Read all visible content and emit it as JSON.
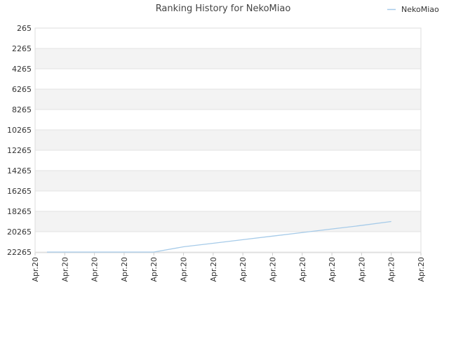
{
  "chart_data": {
    "type": "line",
    "title": "Ranking History for NekoMiao",
    "xlabel": "",
    "ylabel": "",
    "y_inverted": true,
    "ylim": [
      265,
      22265
    ],
    "y_ticks": [
      265,
      2265,
      4265,
      6265,
      8265,
      10265,
      12265,
      14265,
      16265,
      18265,
      20265,
      22265
    ],
    "x_ticks": [
      "Apr.20",
      "Apr.20",
      "Apr.20",
      "Apr.20",
      "Apr.20",
      "Apr.20",
      "Apr.20",
      "Apr.20",
      "Apr.20",
      "Apr.20",
      "Apr.20",
      "Apr.20",
      "Apr.20",
      "Apr.20"
    ],
    "grid": true,
    "legend_position": "top-right",
    "series": [
      {
        "name": "NekoMiao",
        "color": "#a6cbe9",
        "x": [
          0.4,
          4.0,
          5.0,
          6.0,
          7.0,
          8.0,
          9.0,
          10.0,
          11.0,
          12.0
        ],
        "values": [
          22265,
          22265,
          21750,
          21400,
          21050,
          20700,
          20350,
          20000,
          19650,
          19265
        ]
      }
    ]
  }
}
